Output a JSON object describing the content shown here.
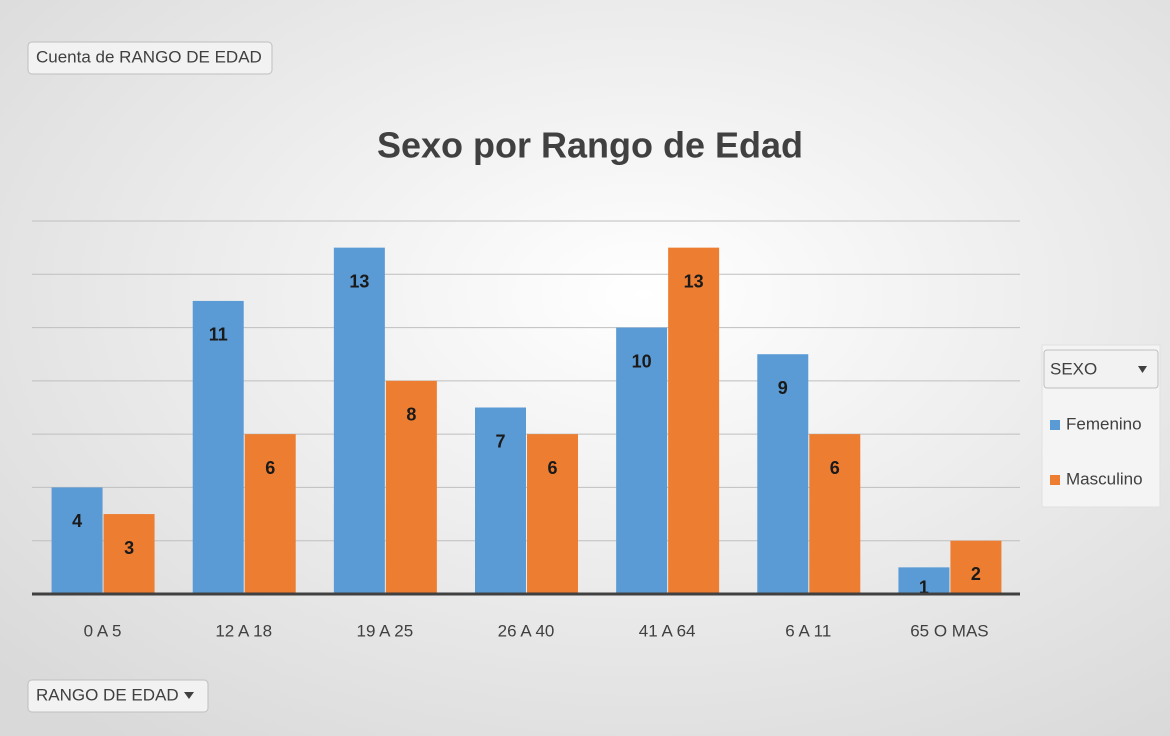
{
  "chart_data": {
    "type": "bar",
    "title": "Sexo por Rango de Edad",
    "value_field": "Cuenta de RANGO DE EDAD",
    "category_field": "RANGO DE EDAD",
    "legend_title": "SEXO",
    "categories": [
      "0 A 5",
      "12 A 18",
      "19 A 25",
      "26 A 40",
      "41 A 64",
      "6 A 11",
      "65 O MAS"
    ],
    "series": [
      {
        "name": "Femenino",
        "color": "#5b9bd5",
        "values": [
          4,
          11,
          13,
          7,
          10,
          9,
          1
        ]
      },
      {
        "name": "Masculino",
        "color": "#ed7d31",
        "values": [
          3,
          6,
          8,
          6,
          13,
          6,
          2
        ]
      }
    ],
    "ylim": [
      0,
      14
    ],
    "yticks": [
      0,
      2,
      4,
      6,
      8,
      10,
      12,
      14
    ],
    "grid": true,
    "legend": "right"
  }
}
